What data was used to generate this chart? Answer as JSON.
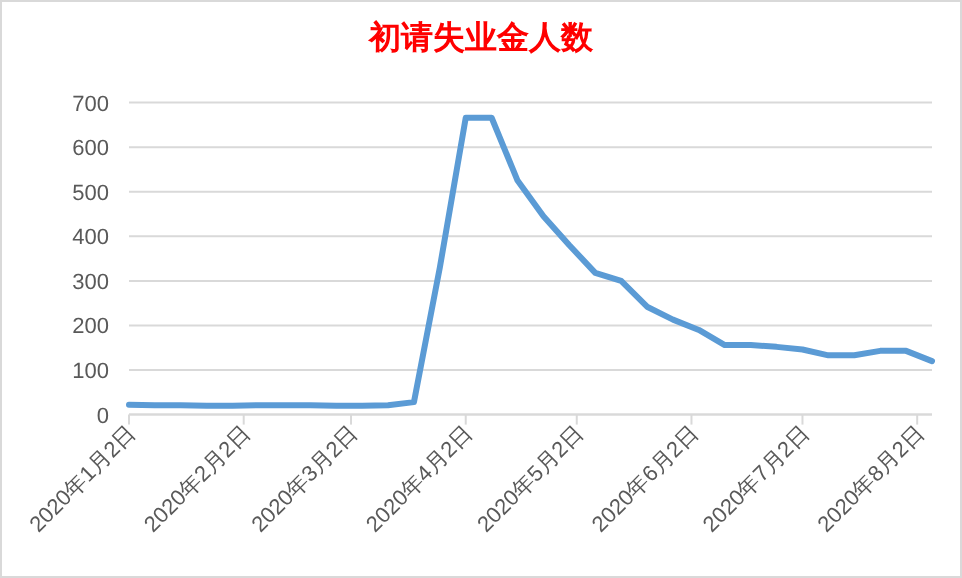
{
  "chart_data": {
    "type": "line",
    "title": "初请失业金人数",
    "x": [
      "2020-01-02",
      "2020-01-09",
      "2020-01-16",
      "2020-01-23",
      "2020-01-30",
      "2020-02-06",
      "2020-02-13",
      "2020-02-20",
      "2020-02-27",
      "2020-03-05",
      "2020-03-12",
      "2020-03-19",
      "2020-03-26",
      "2020-04-02",
      "2020-04-09",
      "2020-04-16",
      "2020-04-23",
      "2020-04-30",
      "2020-05-07",
      "2020-05-14",
      "2020-05-21",
      "2020-05-28",
      "2020-06-04",
      "2020-06-11",
      "2020-06-18",
      "2020-06-25",
      "2020-07-02",
      "2020-07-09",
      "2020-07-16",
      "2020-07-23",
      "2020-07-30",
      "2020-08-06"
    ],
    "series": [
      {
        "color": "#5b9bd5",
        "values": [
          22,
          21,
          21,
          20,
          20,
          21,
          21,
          21,
          20,
          20,
          21,
          28,
          330,
          666,
          666,
          525,
          445,
          380,
          318,
          300,
          242,
          213,
          190,
          156,
          156,
          152,
          146,
          133,
          133,
          143,
          143,
          120
        ]
      }
    ],
    "xlim": [
      "2020-01-02",
      "2020-08-06"
    ],
    "xticks": [
      {
        "value": "2020-01-02",
        "label": "2020年1月2日"
      },
      {
        "value": "2020-02-02",
        "label": "2020年2月2日"
      },
      {
        "value": "2020-03-02",
        "label": "2020年3月2日"
      },
      {
        "value": "2020-04-02",
        "label": "2020年4月2日"
      },
      {
        "value": "2020-05-02",
        "label": "2020年5月2日"
      },
      {
        "value": "2020-06-02",
        "label": "2020年6月2日"
      },
      {
        "value": "2020-07-02",
        "label": "2020年7月2日"
      },
      {
        "value": "2020-08-02",
        "label": "2020年8月2日"
      }
    ],
    "ylim": [
      0,
      700
    ],
    "yticks": [
      0,
      100,
      200,
      300,
      400,
      500,
      600,
      700
    ],
    "grid": "y",
    "marker": "none",
    "line_style": "solid"
  }
}
